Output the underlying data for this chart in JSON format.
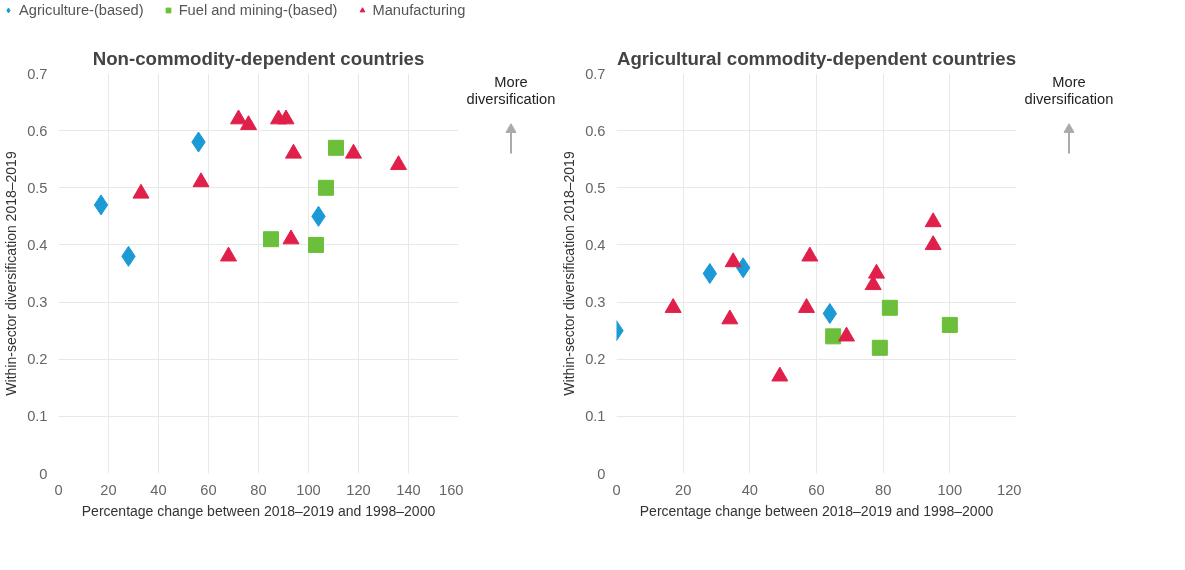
{
  "chart_data": [
    {
      "type": "scatter",
      "title": "Non-commodity-dependent countries",
      "xlabel": "Percentage change between 2018–2019 and 1998–2000",
      "ylabel": "Within-sector diversification 2018–2019",
      "annotations": [
        "More diversification"
      ],
      "xlim": [
        0,
        160
      ],
      "xticks": [
        0,
        20,
        40,
        60,
        80,
        100,
        120,
        140,
        160
      ],
      "ylim": [
        0,
        0.7
      ],
      "yticks": [
        0,
        0.1,
        0.2,
        0.3,
        0.4,
        0.5,
        0.6,
        0.7
      ],
      "grid": true,
      "legend": "top",
      "series": [
        {
          "name": "Agriculture-(based)",
          "color": "#1b9ad6",
          "marker": "diamond",
          "x": [
            17,
            28,
            56,
            104
          ],
          "values": [
            0.47,
            0.38,
            0.58,
            0.45
          ]
        },
        {
          "name": "Fuel and mining-(based)",
          "color": "#6cbf3a",
          "marker": "square",
          "x": [
            85,
            103,
            107,
            111
          ],
          "values": [
            0.41,
            0.4,
            0.5,
            0.57
          ]
        },
        {
          "name": "Manufacturing",
          "color": "#e0204a",
          "marker": "triangle",
          "x": [
            33,
            57,
            68,
            72,
            76,
            88,
            91,
            94,
            93,
            118,
            136
          ],
          "values": [
            0.49,
            0.51,
            0.38,
            0.62,
            0.61,
            0.62,
            0.62,
            0.56,
            0.41,
            0.56,
            0.54
          ]
        }
      ]
    },
    {
      "type": "scatter",
      "title": "Agricultural commodity-dependent countries",
      "xlabel": "Percentage change between 2018–2019 and 1998–2000",
      "ylabel": "Within-sector diversification 2018–2019",
      "annotations": [
        "More diversification"
      ],
      "xlim": [
        0,
        120
      ],
      "xticks": [
        0,
        20,
        40,
        60,
        80,
        100,
        120
      ],
      "ylim": [
        0,
        0.7
      ],
      "yticks": [
        0,
        0.1,
        0.2,
        0.3,
        0.4,
        0.5,
        0.6,
        0.7
      ],
      "grid": true,
      "series": [
        {
          "color": "#1b9ad6",
          "marker": "diamond",
          "x": [
            0,
            28,
            38,
            64
          ],
          "values": [
            0.25,
            0.35,
            0.36,
            0.28
          ]
        },
        {
          "color": "#6cbf3a",
          "marker": "square",
          "x": [
            65,
            79,
            82,
            100
          ],
          "values": [
            0.24,
            0.22,
            0.29,
            0.26
          ]
        },
        {
          "color": "#e0204a",
          "marker": "triangle",
          "x": [
            17,
            34,
            35,
            49,
            57,
            58,
            69,
            77,
            78,
            95,
            95
          ],
          "values": [
            0.29,
            0.27,
            0.37,
            0.17,
            0.29,
            0.38,
            0.24,
            0.33,
            0.35,
            0.44,
            0.4
          ]
        }
      ]
    }
  ]
}
